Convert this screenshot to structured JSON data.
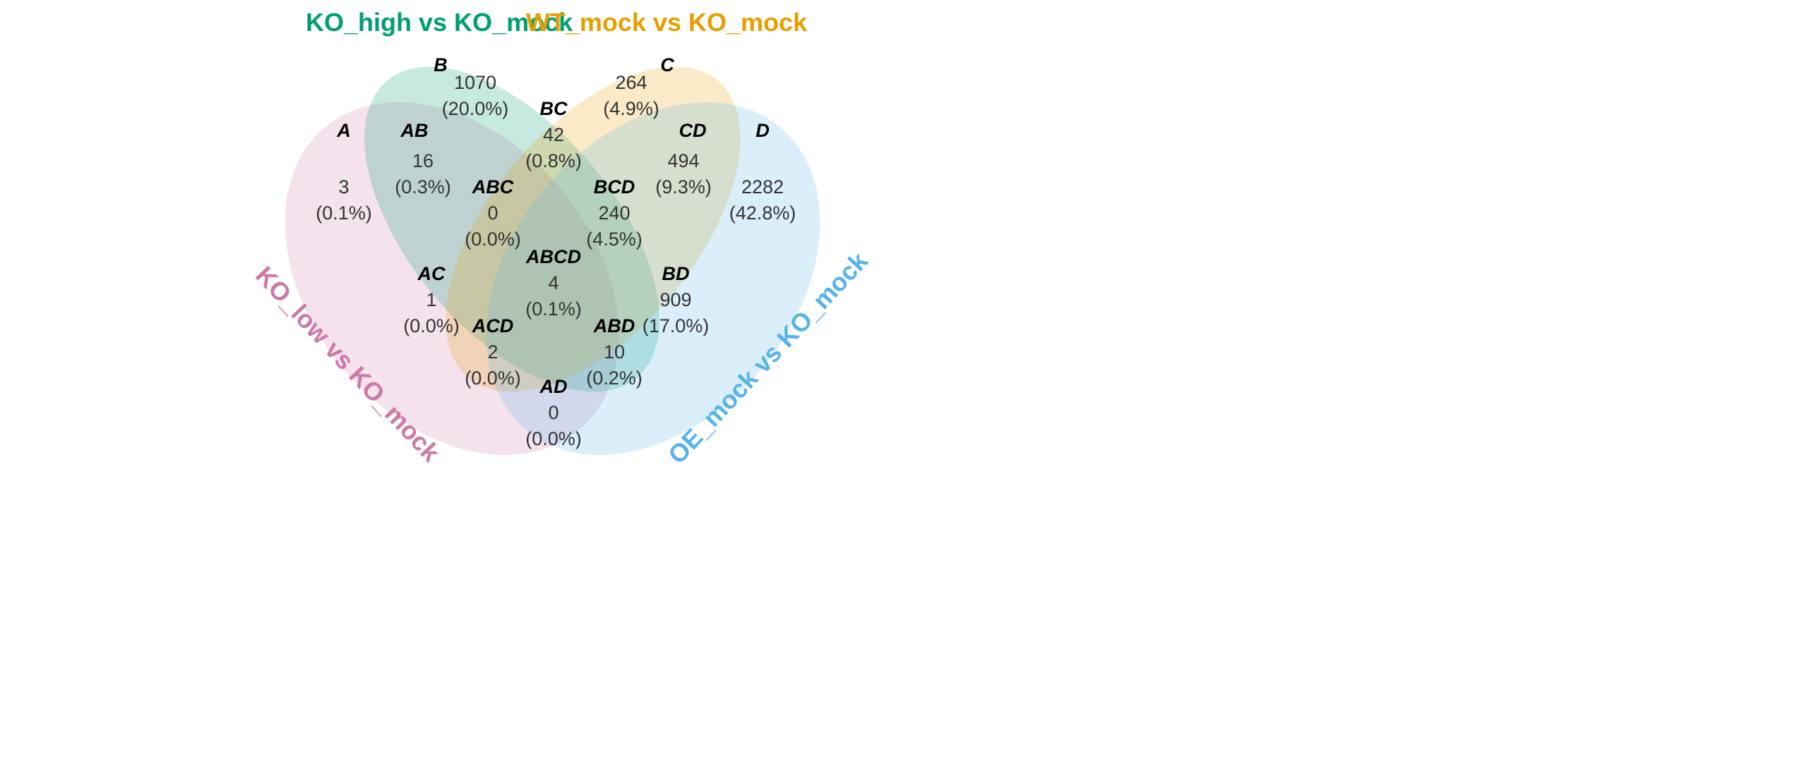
{
  "sets": [
    {
      "id": "A",
      "label": "KO_low vs KO_mock",
      "color": "#CC79A7"
    },
    {
      "id": "B",
      "label": "KO_high vs KO_mock",
      "color": "#009E73"
    },
    {
      "id": "C",
      "label": "WT_mock vs KO_mock",
      "color": "#E69F00"
    },
    {
      "id": "D",
      "label": "OE_mock vs KO_mock",
      "color": "#56B4E9"
    }
  ],
  "regions": [
    {
      "key": "A",
      "count": "3",
      "percent": "(0.1%)"
    },
    {
      "key": "B",
      "count": "1070",
      "percent": "(20.0%)"
    },
    {
      "key": "C",
      "count": "264",
      "percent": "(4.9%)"
    },
    {
      "key": "D",
      "count": "2282",
      "percent": "(42.8%)"
    },
    {
      "key": "AB",
      "count": "16",
      "percent": "(0.3%)"
    },
    {
      "key": "BC",
      "count": "42",
      "percent": "(0.8%)"
    },
    {
      "key": "CD",
      "count": "494",
      "percent": "(9.3%)"
    },
    {
      "key": "ABC",
      "count": "0",
      "percent": "(0.0%)"
    },
    {
      "key": "BCD",
      "count": "240",
      "percent": "(4.5%)"
    },
    {
      "key": "ABCD",
      "count": "4",
      "percent": "(0.1%)"
    },
    {
      "key": "AC",
      "count": "1",
      "percent": "(0.0%)"
    },
    {
      "key": "BD",
      "count": "909",
      "percent": "(17.0%)"
    },
    {
      "key": "ACD",
      "count": "2",
      "percent": "(0.0%)"
    },
    {
      "key": "ABD",
      "count": "10",
      "percent": "(0.2%)"
    },
    {
      "key": "AD",
      "count": "0",
      "percent": "(0.0%)"
    }
  ]
}
